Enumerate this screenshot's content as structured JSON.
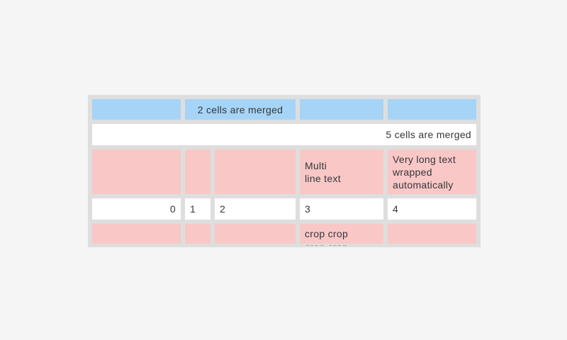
{
  "page": {
    "background_color": "#f5f5f5"
  },
  "table": {
    "grid_color": "#dedede",
    "text_color": "#33373a",
    "cell_colors": {
      "blue": "#a6d4f6",
      "pink": "#fac7c7",
      "white": "#ffffff"
    },
    "rows": [
      {
        "bg": "blue",
        "cells": [
          {
            "text": ""
          },
          {
            "text": "2 cells are merged",
            "colspan": 2,
            "align": "center"
          },
          {
            "text": ""
          },
          {
            "text": ""
          }
        ]
      },
      {
        "bg": "white",
        "cells": [
          {
            "text": "5 cells are merged",
            "colspan": 5,
            "align": "right"
          }
        ]
      },
      {
        "bg": "pink",
        "cells": [
          {
            "text": ""
          },
          {
            "text": ""
          },
          {
            "text": ""
          },
          {
            "text": "Multi\nline text"
          },
          {
            "text": "Very long text wrapped automatically"
          }
        ]
      },
      {
        "bg": "white",
        "cells": [
          {
            "text": "0",
            "align": "right"
          },
          {
            "text": "1"
          },
          {
            "text": "2"
          },
          {
            "text": "3"
          },
          {
            "text": "4"
          }
        ]
      },
      {
        "bg": "pink",
        "cells": [
          {
            "text": ""
          },
          {
            "text": ""
          },
          {
            "text": ""
          },
          {
            "text": "crop crop crop crop"
          },
          {
            "text": ""
          }
        ]
      }
    ]
  }
}
